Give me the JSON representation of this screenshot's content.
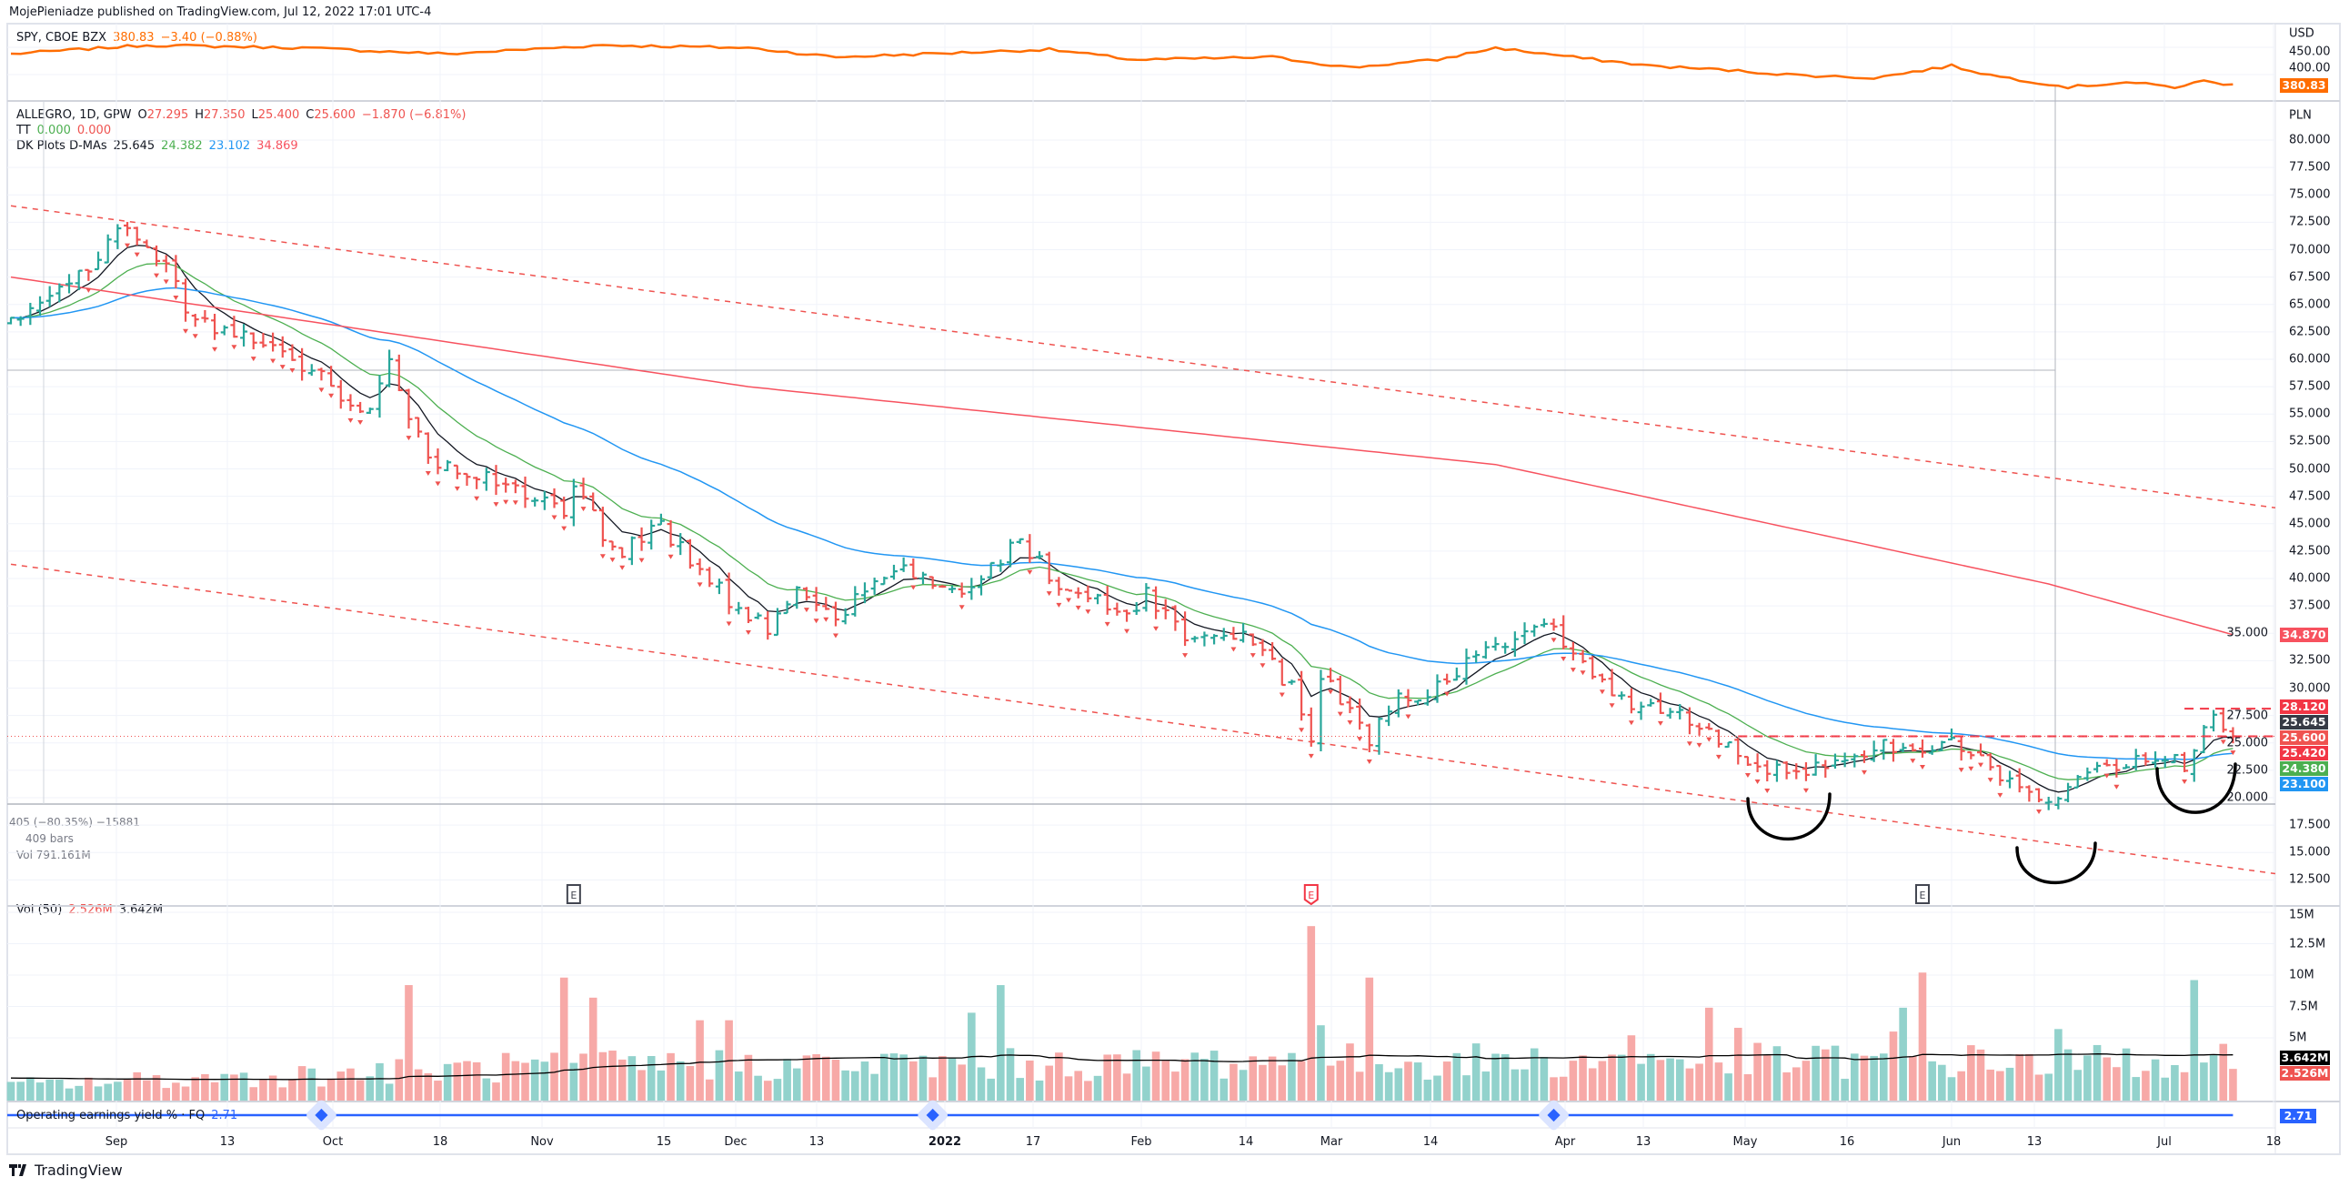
{
  "header": {
    "published": "MojePieniadze published on TradingView.com, Jul 12, 2022 17:01 UTC-4"
  },
  "spy_legend": {
    "symbol": "SPY, CBOE BZX",
    "last": "380.83",
    "change": "−3.40 (−0.88%)"
  },
  "main_legend": {
    "symbol": "ALLEGRO, 1D, GPW",
    "o_label": "O",
    "o": "27.295",
    "h_label": "H",
    "h": "27.350",
    "l_label": "L",
    "l": "25.400",
    "c_label": "C",
    "c": "25.600",
    "change": "−1.870 (−6.81%)",
    "tt_label": "TT",
    "tt1": "0.000",
    "tt2": "0.000",
    "dk_label": "DK Plots D-MAs",
    "dk1": "25.645",
    "dk2": "24.382",
    "dk3": "23.102",
    "dk4": "34.869"
  },
  "measure": {
    "line1": "405 (−80.35%) −15881",
    "line2": "409 bars",
    "line3": "Vol 791.161M"
  },
  "vol_legend": {
    "label": "Vol (50)",
    "v1": "2.526M",
    "v2": "3.642M"
  },
  "ind_legend": {
    "label": "Operating earnings yield % · FQ",
    "value": "2.71"
  },
  "earnings_markers": [
    "E",
    "E",
    "E"
  ],
  "axes": {
    "spy_currency": "USD",
    "spy_ticks": [
      "450.00",
      "400.00"
    ],
    "main_currency": "PLN",
    "price_ticks": [
      "80.000",
      "77.500",
      "75.000",
      "72.500",
      "70.000",
      "67.500",
      "65.000",
      "62.500",
      "60.000",
      "57.500",
      "55.000",
      "52.500",
      "50.000",
      "47.500",
      "45.000",
      "42.500",
      "40.000",
      "37.500",
      "35.000",
      "32.500",
      "30.000",
      "27.500",
      "25.000",
      "22.500",
      "20.000",
      "17.500",
      "15.000",
      "12.500"
    ],
    "vol_ticks": [
      "15M",
      "12.5M",
      "10M",
      "7.5M",
      "5M"
    ],
    "time_ticks": [
      "Sep",
      "13",
      "Oct",
      "18",
      "Nov",
      "15",
      "Dec",
      "13",
      "2022",
      "17",
      "Feb",
      "14",
      "Mar",
      "14",
      "Apr",
      "13",
      "May",
      "16",
      "Jun",
      "13",
      "Jul",
      "18"
    ]
  },
  "badges": {
    "spy": {
      "text": "380.83",
      "color": "#ff6d00"
    },
    "price": [
      {
        "text": "34.870",
        "value": 34.87,
        "color": "#f7525f"
      },
      {
        "text": "28.120",
        "value": 28.12,
        "color": "#f23645"
      },
      {
        "text": "25.645",
        "value": 25.645,
        "color": "#363a45"
      },
      {
        "text": "25.600",
        "value": 25.6,
        "color": "#ef5350"
      },
      {
        "text": "25.420",
        "value": 25.42,
        "color": "#f23645"
      },
      {
        "text": "24.380",
        "value": 24.38,
        "color": "#4caf50"
      },
      {
        "text": "23.100",
        "value": 23.1,
        "color": "#2196f3"
      }
    ],
    "vol": [
      {
        "text": "3.642M",
        "color": "#000000"
      },
      {
        "text": "2.526M",
        "color": "#ef5350"
      }
    ],
    "ind": {
      "text": "2.71",
      "color": "#2962ff"
    }
  },
  "footer": {
    "brand": "TradingView"
  },
  "colors": {
    "up": "#26a69a",
    "down": "#ef5350",
    "up_vol": "#92d2cc",
    "down_vol": "#f7a9a7",
    "spy": "#ff6d00",
    "ma1": "#131722",
    "ma2": "#4caf50",
    "ma3": "#2196f3",
    "ma4": "#f7525f",
    "ind": "#2962ff"
  },
  "chart_data": {
    "type": "bar",
    "title": "ALLEGRO, 1D, GPW",
    "bars": 230,
    "price_path": [
      [
        0,
        63.4
      ],
      [
        7,
        67.5
      ],
      [
        11,
        72.2
      ],
      [
        15,
        69.5
      ],
      [
        19,
        63.4
      ],
      [
        24,
        62.7
      ],
      [
        30,
        59.3
      ],
      [
        37,
        55.2
      ],
      [
        39,
        59.3
      ],
      [
        43,
        51.1
      ],
      [
        50,
        49
      ],
      [
        57,
        46.3
      ],
      [
        58,
        49
      ],
      [
        62,
        42.2
      ],
      [
        67,
        45
      ],
      [
        71,
        40.2
      ],
      [
        78,
        35.4
      ],
      [
        81,
        38.8
      ],
      [
        85,
        36.8
      ],
      [
        91,
        40.8
      ],
      [
        98,
        38.8
      ],
      [
        104,
        43.6
      ],
      [
        108,
        39.5
      ],
      [
        115,
        36.8
      ],
      [
        117,
        38.8
      ],
      [
        122,
        34
      ],
      [
        127,
        35.4
      ],
      [
        132,
        29.9
      ],
      [
        134,
        25.8
      ],
      [
        135,
        31.3
      ],
      [
        140,
        25.2
      ],
      [
        143,
        29.2
      ],
      [
        147,
        29.9
      ],
      [
        151,
        32.7
      ],
      [
        158,
        36.1
      ],
      [
        161,
        32.7
      ],
      [
        166,
        28.6
      ],
      [
        173,
        27.2
      ],
      [
        179,
        23.8
      ],
      [
        183,
        21.7
      ],
      [
        187,
        22.8
      ],
      [
        193,
        24.5
      ],
      [
        200,
        25.2
      ],
      [
        203,
        23.1
      ],
      [
        210,
        19.7
      ],
      [
        215,
        22.4
      ],
      [
        220,
        23.8
      ],
      [
        224,
        23.1
      ],
      [
        227,
        27.5
      ],
      [
        229,
        25.6
      ]
    ],
    "ma200_path": [
      [
        0,
        67.5
      ],
      [
        76,
        57.5
      ],
      [
        153,
        50.4
      ],
      [
        210,
        39.5
      ],
      [
        229,
        34.87
      ]
    ],
    "spy_path": [
      [
        0,
        437.8
      ],
      [
        14,
        454
      ],
      [
        30,
        449
      ],
      [
        45,
        437.8
      ],
      [
        61,
        454
      ],
      [
        76,
        449
      ],
      [
        85,
        432
      ],
      [
        107,
        446
      ],
      [
        116,
        427
      ],
      [
        130,
        432
      ],
      [
        138,
        413
      ],
      [
        147,
        427
      ],
      [
        153,
        449
      ],
      [
        161,
        432
      ],
      [
        169,
        416
      ],
      [
        177,
        408
      ],
      [
        184,
        399
      ],
      [
        192,
        394
      ],
      [
        200,
        416
      ],
      [
        204,
        399
      ],
      [
        212,
        377
      ],
      [
        218,
        386
      ],
      [
        223,
        377
      ],
      [
        226,
        388
      ],
      [
        229,
        380.83
      ]
    ],
    "volume_spikes": [
      [
        41,
        9.2
      ],
      [
        57,
        9.8
      ],
      [
        60,
        8.2
      ],
      [
        71,
        6.4
      ],
      [
        74,
        6.4
      ],
      [
        99,
        7
      ],
      [
        102,
        9.2
      ],
      [
        134,
        13.9
      ],
      [
        135,
        6
      ],
      [
        140,
        9.8
      ],
      [
        167,
        5.2
      ],
      [
        175,
        7.4
      ],
      [
        178,
        5.8
      ],
      [
        194,
        5.5
      ],
      [
        195,
        7.4
      ],
      [
        197,
        10.2
      ],
      [
        211,
        5.7
      ],
      [
        225,
        9.6
      ]
    ],
    "channel_upper": [
      [
        0,
        74
      ],
      [
        229,
        45.9
      ]
    ],
    "channel_lower": [
      [
        0,
        41.3
      ],
      [
        229,
        12.5
      ]
    ],
    "resistance": {
      "from": 178,
      "to": 229,
      "value": 25.6
    },
    "range_top": {
      "from": 224,
      "to": 229,
      "value": 28.12
    },
    "indicator_value": 2.71,
    "indicator_points": [
      32,
      95,
      159
    ],
    "earnings_bars": [
      58,
      134,
      197
    ],
    "price_range": [
      12.5,
      80
    ],
    "volume_range": [
      0,
      15
    ],
    "ylabel": "PLN"
  }
}
